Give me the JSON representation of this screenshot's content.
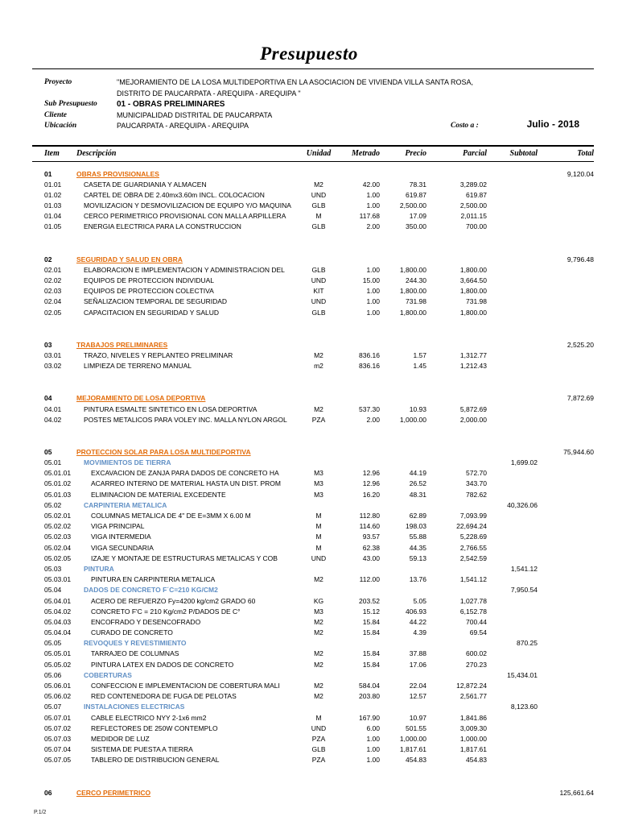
{
  "page": {
    "title": "Presupuesto",
    "footer": "P.1/2"
  },
  "colors": {
    "category_heading": "#E36C0A",
    "subcategory_heading": "#6190C5"
  },
  "header": {
    "proyecto_label": "Proyecto",
    "proyecto_line1": "\"MEJORAMIENTO DE LA LOSA MULTIDEPORTIVA EN LA ASOCIACION DE VIVIENDA VILLA SANTA ROSA,",
    "proyecto_line2": "DISTRITO DE PAUCARPATA -  AREQUIPA -  AREQUIPA \"",
    "subpresupuesto_label": "Sub Presupuesto",
    "subpresupuesto_value": "01 - OBRAS PRELIMINARES",
    "cliente_label": "Cliente",
    "cliente_value": "MUNICIPALIDAD DISTRITAL DE PAUCARPATA",
    "ubicacion_label": "Ubicación",
    "ubicacion_value": "PAUCARPATA - AREQUIPA - AREQUIPA",
    "costo_label": "Costo a :",
    "costo_value": "Julio - 2018"
  },
  "table": {
    "columns": [
      "Item",
      "Descripción",
      "Unidad",
      "Metrado",
      "Precio",
      "Parcial",
      "Subtotal",
      "Total"
    ],
    "rows": [
      {
        "type": "category",
        "item": "01",
        "desc": "OBRAS PROVISIONALES",
        "total": "9,120.04"
      },
      {
        "type": "item",
        "item": "01.01",
        "desc": "CASETA DE GUARDIANIA Y ALMACEN",
        "unidad": "M2",
        "metrado": "42.00",
        "precio": "78.31",
        "parcial": "3,289.02"
      },
      {
        "type": "item",
        "item": "01.02",
        "desc": "CARTEL DE OBRA DE 2.40mx3.60m INCL. COLOCACION",
        "unidad": "UND",
        "metrado": "1.00",
        "precio": "619.87",
        "parcial": "619.87"
      },
      {
        "type": "item",
        "item": "01.03",
        "desc": "MOVILIZACION Y DESMOVILIZACION DE EQUIPO Y/O MAQUINA",
        "unidad": "GLB",
        "metrado": "1.00",
        "precio": "2,500.00",
        "parcial": "2,500.00"
      },
      {
        "type": "item",
        "item": "01.04",
        "desc": "CERCO PERIMETRICO PROVISIONAL CON MALLA ARPILLERA",
        "unidad": "M",
        "metrado": "117.68",
        "precio": "17.09",
        "parcial": "2,011.15"
      },
      {
        "type": "item",
        "item": "01.05",
        "desc": "ENERGIA ELECTRICA PARA LA CONSTRUCCION",
        "unidad": "GLB",
        "metrado": "2.00",
        "precio": "350.00",
        "parcial": "700.00"
      },
      {
        "type": "spacer"
      },
      {
        "type": "category",
        "item": "02",
        "desc": "SEGURIDAD Y SALUD EN OBRA",
        "total": "9,796.48"
      },
      {
        "type": "item",
        "item": "02.01",
        "desc": "ELABORACION E IMPLEMENTACION Y ADMINISTRACION DEL",
        "unidad": "GLB",
        "metrado": "1.00",
        "precio": "1,800.00",
        "parcial": "1,800.00"
      },
      {
        "type": "item",
        "item": "02.02",
        "desc": "EQUIPOS DE PROTECCION INDIVIDUAL",
        "unidad": "UND",
        "metrado": "15.00",
        "precio": "244.30",
        "parcial": "3,664.50"
      },
      {
        "type": "item",
        "item": "02.03",
        "desc": "EQUIPOS DE PROTECCION COLECTIVA",
        "unidad": "KIT",
        "metrado": "1.00",
        "precio": "1,800.00",
        "parcial": "1,800.00"
      },
      {
        "type": "item",
        "item": "02.04",
        "desc": "SEÑALIZACION TEMPORAL DE SEGURIDAD",
        "unidad": "UND",
        "metrado": "1.00",
        "precio": "731.98",
        "parcial": "731.98"
      },
      {
        "type": "item",
        "item": "02.05",
        "desc": "CAPACITACION EN SEGURIDAD Y SALUD",
        "unidad": "GLB",
        "metrado": "1.00",
        "precio": "1,800.00",
        "parcial": "1,800.00"
      },
      {
        "type": "spacer"
      },
      {
        "type": "category",
        "item": "03",
        "desc": "TRABAJOS PRELIMINARES",
        "total": "2,525.20"
      },
      {
        "type": "item",
        "item": "03.01",
        "desc": "TRAZO, NIVELES Y REPLANTEO PRELIMINAR",
        "unidad": "M2",
        "metrado": "836.16",
        "precio": "1.57",
        "parcial": "1,312.77"
      },
      {
        "type": "item",
        "item": "03.02",
        "desc": "LIMPIEZA DE TERRENO MANUAL",
        "unidad": "m2",
        "metrado": "836.16",
        "precio": "1.45",
        "parcial": "1,212.43"
      },
      {
        "type": "spacer"
      },
      {
        "type": "category",
        "item": "04",
        "desc": "MEJORAMIENTO DE LOSA DEPORTIVA",
        "total": "7,872.69"
      },
      {
        "type": "item",
        "item": "04.01",
        "desc": "PINTURA ESMALTE SINTETICO EN LOSA DEPORTIVA",
        "unidad": "M2",
        "metrado": "537.30",
        "precio": "10.93",
        "parcial": "5,872.69"
      },
      {
        "type": "item",
        "item": "04.02",
        "desc": "POSTES METALICOS PARA VOLEY INC. MALLA NYLON ARGOL",
        "unidad": "PZA",
        "metrado": "2.00",
        "precio": "1,000.00",
        "parcial": "2,000.00"
      },
      {
        "type": "spacer"
      },
      {
        "type": "category",
        "item": "05",
        "desc": "PROTECCION SOLAR PARA LOSA MULTIDEPORTIVA",
        "total": "75,944.60"
      },
      {
        "type": "subcategory",
        "item": "05.01",
        "desc": "MOVIMIENTOS DE TIERRA",
        "subtotal": "1,699.02"
      },
      {
        "type": "item",
        "item": "05.01.01",
        "desc": "EXCAVACION DE ZANJA PARA DADOS DE CONCRETO HA",
        "unidad": "M3",
        "metrado": "12.96",
        "precio": "44.19",
        "parcial": "572.70"
      },
      {
        "type": "item",
        "item": "05.01.02",
        "desc": "ACARREO INTERNO DE MATERIAL HASTA UN DIST. PROM",
        "unidad": "M3",
        "metrado": "12.96",
        "precio": "26.52",
        "parcial": "343.70"
      },
      {
        "type": "item",
        "item": "05.01.03",
        "desc": "ELIMINACION DE MATERIAL EXCEDENTE",
        "unidad": "M3",
        "metrado": "16.20",
        "precio": "48.31",
        "parcial": "782.62"
      },
      {
        "type": "subcategory",
        "item": "05.02",
        "desc": "CARPINTERIA METALICA",
        "subtotal": "40,326.06"
      },
      {
        "type": "item",
        "item": "05.02.01",
        "desc": "COLUMNAS METALICA DE 4\" DE E=3MM X 6.00 M",
        "unidad": "M",
        "metrado": "112.80",
        "precio": "62.89",
        "parcial": "7,093.99"
      },
      {
        "type": "item",
        "item": "05.02.02",
        "desc": "VIGA PRINCIPAL",
        "unidad": "M",
        "metrado": "114.60",
        "precio": "198.03",
        "parcial": "22,694.24"
      },
      {
        "type": "item",
        "item": "05.02.03",
        "desc": "VIGA INTERMEDIA",
        "unidad": "M",
        "metrado": "93.57",
        "precio": "55.88",
        "parcial": "5,228.69"
      },
      {
        "type": "item",
        "item": "05.02.04",
        "desc": "VIGA SECUNDARIA",
        "unidad": "M",
        "metrado": "62.38",
        "precio": "44.35",
        "parcial": "2,766.55"
      },
      {
        "type": "item",
        "item": "05.02.05",
        "desc": "IZAJE Y MONTAJE DE ESTRUCTURAS METALICAS Y COB",
        "unidad": "UND",
        "metrado": "43.00",
        "precio": "59.13",
        "parcial": "2,542.59"
      },
      {
        "type": "subcategory",
        "item": "05.03",
        "desc": "PINTURA",
        "subtotal": "1,541.12"
      },
      {
        "type": "item",
        "item": "05.03.01",
        "desc": "PINTURA EN CARPINTERIA METALICA",
        "unidad": "M2",
        "metrado": "112.00",
        "precio": "13.76",
        "parcial": "1,541.12"
      },
      {
        "type": "subcategory",
        "item": "05.04",
        "desc": "DADOS DE CONCRETO F´C=210 KG/CM2",
        "subtotal": "7,950.54"
      },
      {
        "type": "item",
        "item": "05.04.01",
        "desc": "ACERO DE REFUERZO Fy=4200 kg/cm2 GRADO 60",
        "unidad": "KG",
        "metrado": "203.52",
        "precio": "5.05",
        "parcial": "1,027.78"
      },
      {
        "type": "item",
        "item": "05.04.02",
        "desc": "CONCRETO F'C = 210 Kg/cm2 P/DADOS DE C°",
        "unidad": "M3",
        "metrado": "15.12",
        "precio": "406.93",
        "parcial": "6,152.78"
      },
      {
        "type": "item",
        "item": "05.04.03",
        "desc": "ENCOFRADO Y DESENCOFRADO",
        "unidad": "M2",
        "metrado": "15.84",
        "precio": "44.22",
        "parcial": "700.44"
      },
      {
        "type": "item",
        "item": "05.04.04",
        "desc": "CURADO DE CONCRETO",
        "unidad": "M2",
        "metrado": "15.84",
        "precio": "4.39",
        "parcial": "69.54"
      },
      {
        "type": "subcategory",
        "item": "05.05",
        "desc": "REVOQUES Y REVESTIMIENTO",
        "subtotal": "870.25"
      },
      {
        "type": "item",
        "item": "05.05.01",
        "desc": "TARRAJEO DE COLUMNAS",
        "unidad": "M2",
        "metrado": "15.84",
        "precio": "37.88",
        "parcial": "600.02"
      },
      {
        "type": "item",
        "item": "05.05.02",
        "desc": "PINTURA LATEX EN DADOS DE CONCRETO",
        "unidad": "M2",
        "metrado": "15.84",
        "precio": "17.06",
        "parcial": "270.23"
      },
      {
        "type": "subcategory",
        "item": "05.06",
        "desc": "COBERTURAS",
        "subtotal": "15,434.01"
      },
      {
        "type": "item",
        "item": "05.06.01",
        "desc": "CONFECCION E IMPLEMENTACION DE COBERTURA MALI",
        "unidad": "M2",
        "metrado": "584.04",
        "precio": "22.04",
        "parcial": "12,872.24"
      },
      {
        "type": "item",
        "item": "05.06.02",
        "desc": "RED CONTENEDORA DE FUGA DE PELOTAS",
        "unidad": "M2",
        "metrado": "203.80",
        "precio": "12.57",
        "parcial": "2,561.77"
      },
      {
        "type": "subcategory",
        "item": "05.07",
        "desc": "INSTALACIONES ELECTRICAS",
        "subtotal": "8,123.60"
      },
      {
        "type": "item",
        "item": "05.07.01",
        "desc": "CABLE ELECTRICO NYY 2-1x6 mm2",
        "unidad": "M",
        "metrado": "167.90",
        "precio": "10.97",
        "parcial": "1,841.86"
      },
      {
        "type": "item",
        "item": "05.07.02",
        "desc": "REFLECTORES DE 250W CONTEMPLO",
        "unidad": "UND",
        "metrado": "6.00",
        "precio": "501.55",
        "parcial": "3,009.30"
      },
      {
        "type": "item",
        "item": "05.07.03",
        "desc": "MEDIDOR DE LUZ",
        "unidad": "PZA",
        "metrado": "1.00",
        "precio": "1,000.00",
        "parcial": "1,000.00"
      },
      {
        "type": "item",
        "item": "05.07.04",
        "desc": "SISTEMA DE PUESTA A TIERRA",
        "unidad": "GLB",
        "metrado": "1.00",
        "precio": "1,817.61",
        "parcial": "1,817.61"
      },
      {
        "type": "item",
        "item": "05.07.05",
        "desc": "TABLERO DE DISTRIBUCION GENERAL",
        "unidad": "PZA",
        "metrado": "1.00",
        "precio": "454.83",
        "parcial": "454.83"
      },
      {
        "type": "spacer"
      },
      {
        "type": "category",
        "item": "06",
        "desc": "CERCO PERIMETRICO",
        "total": "125,661.64"
      }
    ]
  }
}
